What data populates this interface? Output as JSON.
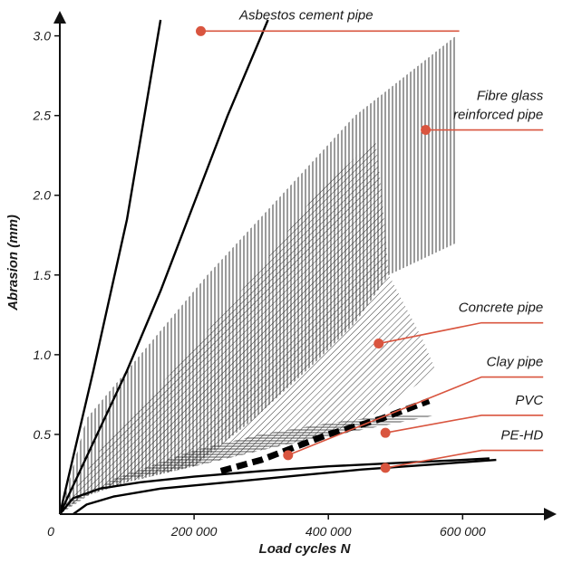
{
  "chart_data": {
    "type": "line",
    "title": "",
    "xlabel": "Load cycles N",
    "ylabel": "Abrasion (mm)",
    "origin_label": "0",
    "xticks": [
      {
        "value": 200000,
        "label": "200 000"
      },
      {
        "value": 400000,
        "label": "400 000"
      },
      {
        "value": 600000,
        "label": "600 000"
      }
    ],
    "yticks": [
      {
        "value": 0.5,
        "label": "0.5"
      },
      {
        "value": 1.0,
        "label": "1.0"
      },
      {
        "value": 1.5,
        "label": "1.5"
      },
      {
        "value": 2.0,
        "label": "2.0"
      },
      {
        "value": 2.5,
        "label": "2.5"
      },
      {
        "value": 3.0,
        "label": "3.0"
      }
    ],
    "xlim": [
      0,
      740000
    ],
    "ylim": [
      0,
      3.1
    ],
    "accent_color": "#d9553f",
    "lines": [
      {
        "id": "asbestos-steep",
        "style": "solid",
        "points": [
          [
            0,
            0
          ],
          [
            50000,
            0.9
          ],
          [
            100000,
            1.85
          ],
          [
            150000,
            3.1
          ]
        ]
      },
      {
        "id": "asbestos-main",
        "style": "solid",
        "points": [
          [
            0,
            0
          ],
          [
            50000,
            0.45
          ],
          [
            100000,
            0.9
          ],
          [
            150000,
            1.4
          ],
          [
            200000,
            1.95
          ],
          [
            250000,
            2.5
          ],
          [
            300000,
            3.0
          ],
          [
            310000,
            3.1
          ]
        ]
      },
      {
        "id": "pvc",
        "style": "dashed",
        "points": [
          [
            240000,
            0.27
          ],
          [
            300000,
            0.34
          ],
          [
            400000,
            0.5
          ],
          [
            480000,
            0.6
          ],
          [
            550000,
            0.71
          ]
        ]
      },
      {
        "id": "pe-hd-upper",
        "style": "solid",
        "points": [
          [
            0,
            0
          ],
          [
            20000,
            0.1
          ],
          [
            60000,
            0.16
          ],
          [
            120000,
            0.2
          ],
          [
            200000,
            0.235
          ],
          [
            300000,
            0.27
          ],
          [
            400000,
            0.3
          ],
          [
            500000,
            0.32
          ],
          [
            600000,
            0.34
          ],
          [
            640000,
            0.35
          ]
        ]
      },
      {
        "id": "pe-hd-lower",
        "style": "solid",
        "points": [
          [
            20000,
            0
          ],
          [
            40000,
            0.06
          ],
          [
            80000,
            0.11
          ],
          [
            150000,
            0.16
          ],
          [
            250000,
            0.2
          ],
          [
            350000,
            0.24
          ],
          [
            450000,
            0.28
          ],
          [
            550000,
            0.31
          ],
          [
            650000,
            0.34
          ]
        ]
      }
    ],
    "bands": [
      {
        "id": "fibre-glass",
        "hatch": "vertical",
        "points": [
          [
            0,
            0
          ],
          [
            40000,
            0.6
          ],
          [
            130000,
            1.05
          ],
          [
            220000,
            1.5
          ],
          [
            330000,
            2.0
          ],
          [
            440000,
            2.5
          ],
          [
            590000,
            3.0
          ],
          [
            590000,
            1.7
          ],
          [
            490000,
            1.5
          ],
          [
            440000,
            1.2
          ],
          [
            380000,
            0.95
          ],
          [
            290000,
            0.6
          ],
          [
            200000,
            0.3
          ],
          [
            100000,
            0.2
          ],
          [
            30000,
            0.1
          ]
        ]
      },
      {
        "id": "concrete",
        "hatch": "diagonal",
        "points": [
          [
            0,
            0
          ],
          [
            60000,
            0.4
          ],
          [
            180000,
            0.95
          ],
          [
            300000,
            1.55
          ],
          [
            380000,
            2.0
          ],
          [
            470000,
            2.35
          ],
          [
            480000,
            2.0
          ],
          [
            490000,
            1.5
          ],
          [
            540000,
            1.1
          ],
          [
            560000,
            0.9
          ],
          [
            480000,
            0.65
          ],
          [
            400000,
            0.5
          ],
          [
            300000,
            0.4
          ],
          [
            200000,
            0.3
          ],
          [
            100000,
            0.2
          ],
          [
            30000,
            0.1
          ]
        ]
      },
      {
        "id": "clay",
        "hatch": "horizontal",
        "points": [
          [
            0,
            0
          ],
          [
            80000,
            0.22
          ],
          [
            200000,
            0.4
          ],
          [
            300000,
            0.5
          ],
          [
            400000,
            0.57
          ],
          [
            490000,
            0.62
          ],
          [
            560000,
            0.62
          ],
          [
            440000,
            0.52
          ],
          [
            320000,
            0.42
          ],
          [
            200000,
            0.3
          ],
          [
            100000,
            0.22
          ],
          [
            30000,
            0.12
          ]
        ]
      }
    ],
    "annotations": [
      {
        "text": "Asbestos cement pipe",
        "marker": [
          210000,
          3.03
        ],
        "leader_end": [
          595000,
          3.03
        ]
      },
      {
        "text": "Fibre glass reinforced pipe",
        "lines": [
          "Fibre glass",
          "reinforced pipe"
        ],
        "marker": [
          545000,
          2.41
        ],
        "leader_end": [
          720000,
          2.41
        ]
      },
      {
        "text": "Concrete pipe",
        "marker": [
          475000,
          1.07
        ],
        "leader_end": [
          720000,
          1.2
        ]
      },
      {
        "text": "Clay pipe",
        "marker": [
          340000,
          0.37
        ],
        "leader_end": [
          720000,
          0.86
        ]
      },
      {
        "text": "PVC",
        "marker": [
          485000,
          0.51
        ],
        "leader_end": [
          720000,
          0.62
        ]
      },
      {
        "text": "PE-HD",
        "marker": [
          485000,
          0.29
        ],
        "leader_end": [
          720000,
          0.4
        ]
      }
    ]
  }
}
